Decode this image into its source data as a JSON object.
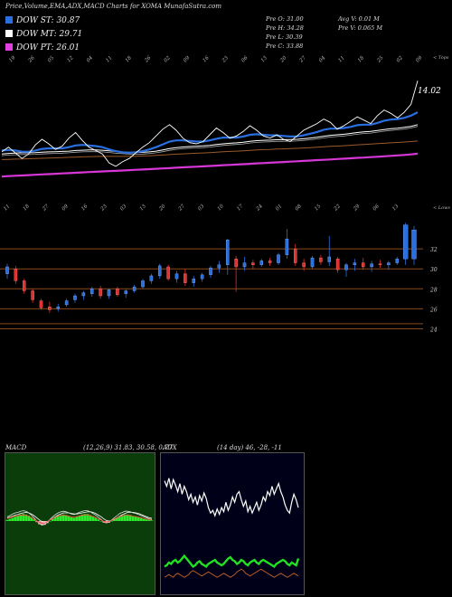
{
  "header": {
    "title": "Price,Volume,EMA,ADX,MACD Charts for XOMA MunafaSutra.com",
    "legend": [
      {
        "label": "DOW ST: 30.87",
        "color": "#2a6fe0"
      },
      {
        "label": "DOW MT: 29.71",
        "color": "#ffffff"
      },
      {
        "label": "DOW PT: 26.01",
        "color": "#e040e0"
      }
    ],
    "stats_left": [
      "Pre   O: 31.00",
      "Pre   H: 34.28",
      "Pre   L: 30.39",
      "Pre   C: 33.88"
    ],
    "stats_right": [
      "Avg V: 0.01 M",
      "Pre   V: 0.065 M"
    ]
  },
  "chart_data": [
    {
      "type": "line",
      "name": "price-ema-panel",
      "last_price_label": "14.02",
      "top_right_label": "< Tops",
      "bottom_right_label": "< Lows",
      "top_date_labels": [
        "19",
        "26",
        "05",
        "12",
        "04",
        "11",
        "18",
        "26",
        "02",
        "09",
        "16",
        "23",
        "06",
        "13",
        "20",
        "27",
        "04",
        "11",
        "18",
        "25",
        "02",
        "09"
      ],
      "bottom_date_labels": [
        "11",
        "18",
        "27",
        "09",
        "16",
        "23",
        "03",
        "13",
        "20",
        "27",
        "03",
        "10",
        "17",
        "24",
        "01",
        "08",
        "15",
        "22",
        "29",
        "06",
        "13"
      ],
      "price": [
        15.2,
        15.6,
        15.1,
        14.6,
        15.0,
        15.8,
        16.3,
        15.9,
        15.4,
        15.7,
        16.4,
        16.9,
        16.2,
        15.6,
        15.3,
        15.0,
        14.2,
        13.9,
        14.3,
        14.6,
        15.1,
        15.6,
        16.0,
        16.6,
        17.2,
        17.6,
        17.1,
        16.4,
        16.0,
        15.9,
        16.1,
        16.7,
        17.3,
        16.9,
        16.4,
        16.6,
        17.0,
        17.5,
        17.1,
        16.6,
        16.4,
        16.7,
        16.3,
        16.1,
        16.6,
        17.1,
        17.4,
        17.7,
        18.1,
        17.8,
        17.2,
        17.5,
        17.9,
        18.3,
        18.0,
        17.7,
        18.4,
        18.9,
        18.6,
        18.2,
        18.7,
        19.4,
        21.5
      ],
      "ema_fast": [
        15.3,
        15.35,
        15.3,
        15.2,
        15.2,
        15.3,
        15.45,
        15.5,
        15.5,
        15.5,
        15.6,
        15.75,
        15.8,
        15.75,
        15.7,
        15.6,
        15.4,
        15.25,
        15.15,
        15.1,
        15.15,
        15.25,
        15.4,
        15.6,
        15.85,
        16.1,
        16.2,
        16.2,
        16.15,
        16.1,
        16.1,
        16.2,
        16.35,
        16.45,
        16.45,
        16.45,
        16.55,
        16.7,
        16.75,
        16.7,
        16.65,
        16.65,
        16.6,
        16.55,
        16.55,
        16.65,
        16.8,
        16.95,
        17.15,
        17.25,
        17.25,
        17.3,
        17.4,
        17.55,
        17.6,
        17.6,
        17.75,
        17.95,
        18.05,
        18.1,
        18.2,
        18.4,
        18.7
      ],
      "ema_mid": [
        15.0,
        15.05,
        15.08,
        15.1,
        15.1,
        15.12,
        15.15,
        15.18,
        15.2,
        15.22,
        15.25,
        15.3,
        15.33,
        15.35,
        15.35,
        15.33,
        15.28,
        15.22,
        15.17,
        15.14,
        15.13,
        15.14,
        15.18,
        15.25,
        15.35,
        15.47,
        15.56,
        15.62,
        15.66,
        15.68,
        15.71,
        15.76,
        15.83,
        15.9,
        15.95,
        15.99,
        16.04,
        16.12,
        16.18,
        16.21,
        16.23,
        16.26,
        16.27,
        16.28,
        16.3,
        16.35,
        16.41,
        16.48,
        16.57,
        16.65,
        16.7,
        16.75,
        16.82,
        16.9,
        16.96,
        17.0,
        17.08,
        17.17,
        17.24,
        17.29,
        17.36,
        17.45,
        17.6
      ],
      "ema_slow": [
        14.5,
        14.52,
        14.54,
        14.55,
        14.57,
        14.59,
        14.61,
        14.63,
        14.65,
        14.67,
        14.7,
        14.72,
        14.74,
        14.76,
        14.77,
        14.78,
        14.78,
        14.78,
        14.78,
        14.79,
        14.8,
        14.82,
        14.84,
        14.87,
        14.9,
        14.94,
        14.98,
        15.01,
        15.04,
        15.06,
        15.09,
        15.12,
        15.16,
        15.19,
        15.22,
        15.25,
        15.28,
        15.32,
        15.35,
        15.38,
        15.4,
        15.43,
        15.45,
        15.47,
        15.5,
        15.53,
        15.56,
        15.6,
        15.64,
        15.67,
        15.7,
        15.73,
        15.77,
        15.81,
        15.84,
        15.87,
        15.91,
        15.95,
        15.99,
        16.02,
        16.06,
        16.1,
        16.15
      ],
      "ema_long": [
        13.0,
        13.03,
        13.06,
        13.09,
        13.12,
        13.15,
        13.18,
        13.21,
        13.24,
        13.27,
        13.3,
        13.33,
        13.36,
        13.39,
        13.42,
        13.45,
        13.48,
        13.5,
        13.53,
        13.56,
        13.59,
        13.62,
        13.65,
        13.68,
        13.71,
        13.74,
        13.78,
        13.81,
        13.84,
        13.87,
        13.9,
        13.93,
        13.96,
        14.0,
        14.03,
        14.06,
        14.09,
        14.12,
        14.16,
        14.19,
        14.22,
        14.25,
        14.28,
        14.32,
        14.35,
        14.38,
        14.41,
        14.45,
        14.48,
        14.51,
        14.55,
        14.58,
        14.61,
        14.65,
        14.68,
        14.72,
        14.75,
        14.79,
        14.83,
        14.87,
        14.91,
        14.96,
        15.02
      ],
      "ylim": [
        11,
        22
      ]
    },
    {
      "type": "candlestick",
      "name": "candle-panel",
      "y_ticks": [
        "32",
        "30",
        "28",
        "26",
        "24"
      ],
      "y_tick_values": [
        32,
        30,
        28,
        26,
        24
      ],
      "ylim": [
        22.5,
        35
      ],
      "candles": [
        {
          "o": 29.5,
          "h": 30.5,
          "l": 29.0,
          "c": 30.2,
          "up": true
        },
        {
          "o": 30.0,
          "h": 30.3,
          "l": 28.5,
          "c": 28.8,
          "up": false
        },
        {
          "o": 28.8,
          "h": 29.0,
          "l": 27.5,
          "c": 27.8,
          "up": false
        },
        {
          "o": 27.8,
          "h": 28.0,
          "l": 26.6,
          "c": 26.9,
          "up": false
        },
        {
          "o": 26.8,
          "h": 27.0,
          "l": 25.9,
          "c": 26.1,
          "up": false
        },
        {
          "o": 26.2,
          "h": 26.7,
          "l": 25.6,
          "c": 25.9,
          "up": false
        },
        {
          "o": 26.0,
          "h": 26.5,
          "l": 25.7,
          "c": 26.2,
          "up": true
        },
        {
          "o": 26.4,
          "h": 27.0,
          "l": 26.2,
          "c": 26.8,
          "up": true
        },
        {
          "o": 26.9,
          "h": 27.5,
          "l": 26.6,
          "c": 27.3,
          "up": true
        },
        {
          "o": 27.3,
          "h": 27.8,
          "l": 26.9,
          "c": 27.6,
          "up": true
        },
        {
          "o": 27.5,
          "h": 28.2,
          "l": 27.2,
          "c": 28.0,
          "up": true
        },
        {
          "o": 28.0,
          "h": 28.3,
          "l": 27.0,
          "c": 27.3,
          "up": false
        },
        {
          "o": 27.3,
          "h": 28.0,
          "l": 27.0,
          "c": 27.9,
          "up": true
        },
        {
          "o": 28.0,
          "h": 28.2,
          "l": 27.2,
          "c": 27.4,
          "up": false
        },
        {
          "o": 27.5,
          "h": 28.0,
          "l": 27.1,
          "c": 27.8,
          "up": true
        },
        {
          "o": 27.8,
          "h": 28.4,
          "l": 27.6,
          "c": 28.2,
          "up": true
        },
        {
          "o": 28.2,
          "h": 29.0,
          "l": 28.0,
          "c": 28.8,
          "up": true
        },
        {
          "o": 28.8,
          "h": 29.5,
          "l": 28.5,
          "c": 29.3,
          "up": true
        },
        {
          "o": 29.3,
          "h": 30.5,
          "l": 29.0,
          "c": 30.3,
          "up": true
        },
        {
          "o": 30.2,
          "h": 30.4,
          "l": 28.8,
          "c": 29.0,
          "up": false
        },
        {
          "o": 29.0,
          "h": 29.8,
          "l": 28.6,
          "c": 29.5,
          "up": true
        },
        {
          "o": 29.5,
          "h": 30.0,
          "l": 28.3,
          "c": 28.6,
          "up": false
        },
        {
          "o": 28.6,
          "h": 29.3,
          "l": 28.2,
          "c": 29.0,
          "up": true
        },
        {
          "o": 29.0,
          "h": 29.6,
          "l": 28.7,
          "c": 29.4,
          "up": true
        },
        {
          "o": 29.4,
          "h": 30.3,
          "l": 29.1,
          "c": 30.1,
          "up": true
        },
        {
          "o": 30.1,
          "h": 30.8,
          "l": 29.6,
          "c": 30.4,
          "up": true
        },
        {
          "o": 30.4,
          "h": 33.0,
          "l": 29.4,
          "c": 32.9,
          "up": true
        },
        {
          "o": 31.0,
          "h": 31.3,
          "l": 27.7,
          "c": 30.2,
          "up": false
        },
        {
          "o": 30.2,
          "h": 31.2,
          "l": 29.8,
          "c": 30.6,
          "up": true
        },
        {
          "o": 30.6,
          "h": 30.9,
          "l": 30.0,
          "c": 30.4,
          "up": false
        },
        {
          "o": 30.4,
          "h": 31.0,
          "l": 30.2,
          "c": 30.8,
          "up": true
        },
        {
          "o": 30.8,
          "h": 31.1,
          "l": 30.3,
          "c": 30.6,
          "up": false
        },
        {
          "o": 30.6,
          "h": 31.6,
          "l": 30.4,
          "c": 31.4,
          "up": true
        },
        {
          "o": 31.4,
          "h": 34.0,
          "l": 31.0,
          "c": 33.0,
          "up": true
        },
        {
          "o": 32.0,
          "h": 32.5,
          "l": 30.3,
          "c": 30.6,
          "up": false
        },
        {
          "o": 30.6,
          "h": 31.0,
          "l": 29.8,
          "c": 30.2,
          "up": false
        },
        {
          "o": 30.2,
          "h": 31.3,
          "l": 30.0,
          "c": 31.1,
          "up": true
        },
        {
          "o": 31.1,
          "h": 31.4,
          "l": 30.4,
          "c": 30.7,
          "up": false
        },
        {
          "o": 30.7,
          "h": 33.3,
          "l": 30.3,
          "c": 31.2,
          "up": true
        },
        {
          "o": 31.0,
          "h": 31.2,
          "l": 29.6,
          "c": 29.9,
          "up": false
        },
        {
          "o": 29.9,
          "h": 30.6,
          "l": 29.2,
          "c": 30.4,
          "up": true
        },
        {
          "o": 30.4,
          "h": 31.0,
          "l": 29.8,
          "c": 30.6,
          "up": true
        },
        {
          "o": 30.6,
          "h": 31.1,
          "l": 29.9,
          "c": 30.2,
          "up": false
        },
        {
          "o": 30.2,
          "h": 30.8,
          "l": 29.7,
          "c": 30.5,
          "up": true
        },
        {
          "o": 30.5,
          "h": 30.9,
          "l": 30.1,
          "c": 30.4,
          "up": false
        },
        {
          "o": 30.4,
          "h": 30.8,
          "l": 29.9,
          "c": 30.6,
          "up": true
        },
        {
          "o": 30.6,
          "h": 31.2,
          "l": 30.4,
          "c": 31.0,
          "up": true
        },
        {
          "o": 31.0,
          "h": 34.6,
          "l": 30.4,
          "c": 34.4,
          "up": true
        },
        {
          "o": 31.0,
          "h": 34.3,
          "l": 30.4,
          "c": 33.9,
          "up": true
        }
      ]
    },
    {
      "type": "area",
      "name": "macd-panel",
      "label": "MACD",
      "values_label": "(12,26,9) 31.83, 30.58, 0.77",
      "histogram": [
        0.2,
        0.4,
        0.6,
        0.8,
        1.0,
        1.2,
        1.3,
        1.2,
        1.0,
        0.7,
        0.3,
        -0.2,
        -0.6,
        -0.8,
        -0.7,
        -0.4,
        0.0,
        0.4,
        0.8,
        1.0,
        1.1,
        1.2,
        1.1,
        0.9,
        0.7,
        0.6,
        0.8,
        1.0,
        1.2,
        1.3,
        1.3,
        1.1,
        0.9,
        0.6,
        0.3,
        0.0,
        -0.3,
        -0.4,
        -0.3,
        0.0,
        0.3,
        0.6,
        0.9,
        1.1,
        1.2,
        1.2,
        1.1,
        0.9,
        0.8,
        0.7,
        0.6,
        0.4,
        0.3,
        0.2,
        0.1
      ],
      "macd": [
        0.8,
        1.0,
        1.3,
        1.5,
        1.6,
        1.8,
        1.9,
        1.8,
        1.5,
        1.1,
        0.6,
        0.0,
        -0.5,
        -0.7,
        -0.6,
        -0.2,
        0.3,
        0.8,
        1.2,
        1.5,
        1.7,
        1.8,
        1.7,
        1.5,
        1.3,
        1.2,
        1.4,
        1.6,
        1.8,
        1.9,
        1.9,
        1.7,
        1.4,
        1.1,
        0.7,
        0.3,
        -0.1,
        -0.3,
        -0.2,
        0.2,
        0.6,
        1.0,
        1.4,
        1.6,
        1.8,
        1.8,
        1.7,
        1.5,
        1.4,
        1.2,
        1.0,
        0.8,
        0.6,
        0.4,
        0.3
      ],
      "signal": [
        0.6,
        0.7,
        0.9,
        1.1,
        1.2,
        1.4,
        1.5,
        1.6,
        1.5,
        1.3,
        1.0,
        0.6,
        0.2,
        -0.1,
        -0.2,
        -0.1,
        0.2,
        0.5,
        0.8,
        1.1,
        1.3,
        1.5,
        1.5,
        1.5,
        1.4,
        1.3,
        1.3,
        1.4,
        1.5,
        1.6,
        1.7,
        1.7,
        1.6,
        1.4,
        1.1,
        0.8,
        0.4,
        0.1,
        0.0,
        0.1,
        0.3,
        0.6,
        0.9,
        1.2,
        1.4,
        1.6,
        1.6,
        1.6,
        1.5,
        1.4,
        1.2,
        1.0,
        0.8,
        0.6,
        0.5
      ],
      "ylim": [
        -12,
        12
      ]
    },
    {
      "type": "line",
      "name": "adx-panel",
      "label": "ADX",
      "values_label": "(14 day) 46, -28, -11",
      "adx": [
        82,
        78,
        84,
        76,
        83,
        79,
        74,
        80,
        72,
        78,
        74,
        68,
        72,
        66,
        70,
        64,
        71,
        67,
        73,
        69,
        62,
        58,
        60,
        56,
        61,
        57,
        62,
        59,
        66,
        60,
        64,
        70,
        66,
        72,
        74,
        68,
        63,
        67,
        59,
        63,
        58,
        62,
        66,
        60,
        64,
        70,
        67,
        74,
        71,
        78,
        72,
        76,
        80,
        74,
        70,
        64,
        60,
        58,
        66,
        72,
        68,
        62
      ],
      "di_plus": [
        18,
        19,
        21,
        20,
        22,
        23,
        21,
        22,
        24,
        26,
        24,
        22,
        20,
        18,
        19,
        21,
        22,
        20,
        19,
        18,
        20,
        21,
        22,
        23,
        21,
        20,
        19,
        20,
        22,
        24,
        25,
        23,
        22,
        20,
        21,
        23,
        22,
        20,
        19,
        21,
        22,
        23,
        21,
        20,
        22,
        23,
        22,
        21,
        20,
        19,
        18,
        20,
        21,
        22,
        23,
        22,
        20,
        19,
        21,
        20,
        19,
        24
      ],
      "di_minus": [
        10,
        11,
        12,
        11,
        10,
        12,
        13,
        12,
        11,
        10,
        11,
        12,
        14,
        15,
        14,
        13,
        12,
        11,
        12,
        13,
        14,
        13,
        12,
        11,
        10,
        11,
        12,
        13,
        12,
        11,
        10,
        11,
        12,
        14,
        15,
        16,
        15,
        13,
        12,
        11,
        12,
        13,
        14,
        15,
        16,
        15,
        14,
        13,
        12,
        11,
        10,
        11,
        12,
        13,
        12,
        11,
        10,
        11,
        12,
        13,
        12,
        11
      ],
      "ylim": [
        0,
        100
      ]
    }
  ]
}
